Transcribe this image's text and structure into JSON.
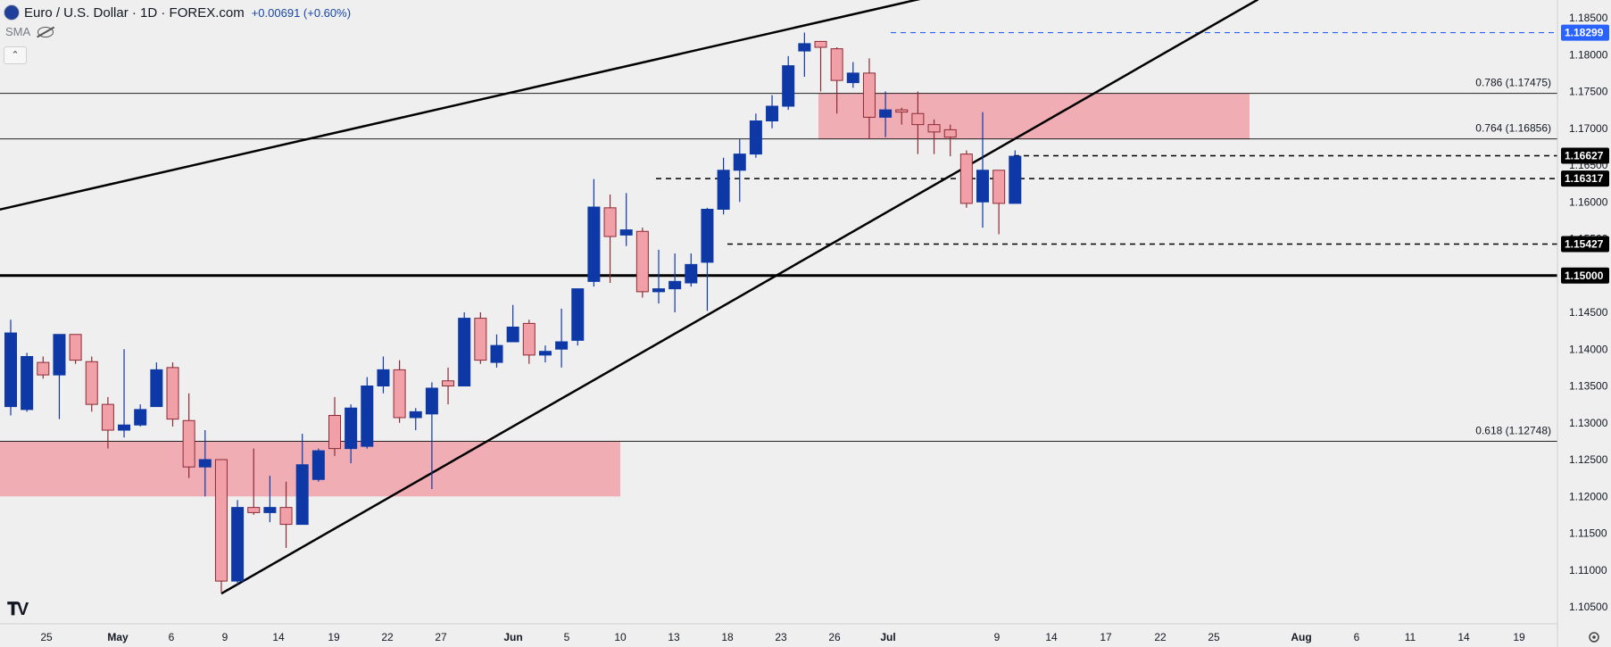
{
  "header": {
    "title": "Euro / U.S. Dollar · 1D · FOREX.com",
    "change": "+0.00691 (+0.60%)",
    "indicator": "SMA",
    "collapse_icon": "chevron-up-icon",
    "logo": "TV"
  },
  "colors": {
    "up": "#0e38a6",
    "down": "#f2a0a8",
    "down_border": "#8c2a35",
    "zone": "rgba(240,128,140,0.6)",
    "last_price_tag": "#2962ff",
    "black_tag": "#000000"
  },
  "chart_data": {
    "type": "candlestick",
    "title": "Euro / U.S. Dollar · 1D · FOREX.com",
    "ylim": [
      1.1025,
      1.1875
    ],
    "y_ticks": [
      "1.18500",
      "1.18000",
      "1.17500",
      "1.17000",
      "1.16500",
      "1.16000",
      "1.15500",
      "1.15000",
      "1.14500",
      "1.14000",
      "1.13500",
      "1.13000",
      "1.12500",
      "1.12000",
      "1.11500",
      "1.11000",
      "1.10500"
    ],
    "x_ticks": [
      "25",
      "May",
      "6",
      "9",
      "14",
      "19",
      "22",
      "27",
      "Jun",
      "5",
      "10",
      "13",
      "18",
      "23",
      "26",
      "Jul",
      "9",
      "14",
      "17",
      "22",
      "25",
      "Aug",
      "6",
      "11",
      "14",
      "19"
    ],
    "candles": [
      {
        "open": 1.1322,
        "high": 1.144,
        "low": 1.131,
        "close": 1.1422
      },
      {
        "open": 1.1318,
        "high": 1.1395,
        "low": 1.1315,
        "close": 1.139
      },
      {
        "open": 1.1382,
        "high": 1.139,
        "low": 1.136,
        "close": 1.1365
      },
      {
        "open": 1.1365,
        "high": 1.142,
        "low": 1.1305,
        "close": 1.142
      },
      {
        "open": 1.142,
        "high": 1.142,
        "low": 1.138,
        "close": 1.1385
      },
      {
        "open": 1.1383,
        "high": 1.139,
        "low": 1.1315,
        "close": 1.1325
      },
      {
        "open": 1.1325,
        "high": 1.1335,
        "low": 1.1265,
        "close": 1.129
      },
      {
        "open": 1.129,
        "high": 1.14,
        "low": 1.128,
        "close": 1.1297
      },
      {
        "open": 1.1297,
        "high": 1.1325,
        "low": 1.1295,
        "close": 1.1318
      },
      {
        "open": 1.1322,
        "high": 1.1382,
        "low": 1.1322,
        "close": 1.1372
      },
      {
        "open": 1.1375,
        "high": 1.1382,
        "low": 1.1295,
        "close": 1.1305
      },
      {
        "open": 1.1303,
        "high": 1.134,
        "low": 1.1225,
        "close": 1.124
      },
      {
        "open": 1.124,
        "high": 1.129,
        "low": 1.12,
        "close": 1.125
      },
      {
        "open": 1.125,
        "high": 1.125,
        "low": 1.107,
        "close": 1.1085
      },
      {
        "open": 1.1085,
        "high": 1.1195,
        "low": 1.108,
        "close": 1.1185
      },
      {
        "open": 1.1185,
        "high": 1.1265,
        "low": 1.1175,
        "close": 1.1178
      },
      {
        "open": 1.1178,
        "high": 1.1228,
        "low": 1.1165,
        "close": 1.1185
      },
      {
        "open": 1.1185,
        "high": 1.122,
        "low": 1.113,
        "close": 1.1162
      },
      {
        "open": 1.1162,
        "high": 1.1285,
        "low": 1.1162,
        "close": 1.1243
      },
      {
        "open": 1.1223,
        "high": 1.1265,
        "low": 1.122,
        "close": 1.1262
      },
      {
        "open": 1.131,
        "high": 1.1335,
        "low": 1.1255,
        "close": 1.1265
      },
      {
        "open": 1.1265,
        "high": 1.1325,
        "low": 1.1245,
        "close": 1.132
      },
      {
        "open": 1.1268,
        "high": 1.1362,
        "low": 1.1265,
        "close": 1.135
      },
      {
        "open": 1.135,
        "high": 1.139,
        "low": 1.134,
        "close": 1.1372
      },
      {
        "open": 1.1372,
        "high": 1.1385,
        "low": 1.13,
        "close": 1.1307
      },
      {
        "open": 1.1307,
        "high": 1.132,
        "low": 1.129,
        "close": 1.1315
      },
      {
        "open": 1.1312,
        "high": 1.1355,
        "low": 1.121,
        "close": 1.1347
      },
      {
        "open": 1.1357,
        "high": 1.1375,
        "low": 1.1325,
        "close": 1.135
      },
      {
        "open": 1.135,
        "high": 1.145,
        "low": 1.135,
        "close": 1.1442
      },
      {
        "open": 1.1442,
        "high": 1.145,
        "low": 1.138,
        "close": 1.1385
      },
      {
        "open": 1.1382,
        "high": 1.142,
        "low": 1.1375,
        "close": 1.1405
      },
      {
        "open": 1.141,
        "high": 1.146,
        "low": 1.141,
        "close": 1.143
      },
      {
        "open": 1.1435,
        "high": 1.144,
        "low": 1.138,
        "close": 1.1392
      },
      {
        "open": 1.1392,
        "high": 1.1405,
        "low": 1.1382,
        "close": 1.1397
      },
      {
        "open": 1.14,
        "high": 1.1455,
        "low": 1.1375,
        "close": 1.141
      },
      {
        "open": 1.1412,
        "high": 1.1475,
        "low": 1.1405,
        "close": 1.1482
      },
      {
        "open": 1.1492,
        "high": 1.1631,
        "low": 1.1485,
        "close": 1.1593
      },
      {
        "open": 1.1592,
        "high": 1.161,
        "low": 1.149,
        "close": 1.1553
      },
      {
        "open": 1.1555,
        "high": 1.1612,
        "low": 1.154,
        "close": 1.1562
      },
      {
        "open": 1.156,
        "high": 1.1565,
        "low": 1.147,
        "close": 1.1478
      },
      {
        "open": 1.1478,
        "high": 1.1535,
        "low": 1.1462,
        "close": 1.1482
      },
      {
        "open": 1.1482,
        "high": 1.153,
        "low": 1.145,
        "close": 1.1492
      },
      {
        "open": 1.149,
        "high": 1.153,
        "low": 1.1485,
        "close": 1.1515
      },
      {
        "open": 1.1518,
        "high": 1.1592,
        "low": 1.1452,
        "close": 1.159
      },
      {
        "open": 1.159,
        "high": 1.166,
        "low": 1.1583,
        "close": 1.1643
      },
      {
        "open": 1.1643,
        "high": 1.1685,
        "low": 1.16,
        "close": 1.1665
      },
      {
        "open": 1.1665,
        "high": 1.172,
        "low": 1.166,
        "close": 1.171
      },
      {
        "open": 1.171,
        "high": 1.1745,
        "low": 1.17,
        "close": 1.173
      },
      {
        "open": 1.173,
        "high": 1.1798,
        "low": 1.1725,
        "close": 1.1785
      },
      {
        "open": 1.1805,
        "high": 1.183,
        "low": 1.177,
        "close": 1.1815
      },
      {
        "open": 1.1818,
        "high": 1.1815,
        "low": 1.175,
        "close": 1.181
      },
      {
        "open": 1.1808,
        "high": 1.181,
        "low": 1.172,
        "close": 1.1765
      },
      {
        "open": 1.1762,
        "high": 1.179,
        "low": 1.1755,
        "close": 1.1775
      },
      {
        "open": 1.1775,
        "high": 1.1795,
        "low": 1.1685,
        "close": 1.1715
      },
      {
        "open": 1.1715,
        "high": 1.175,
        "low": 1.1688,
        "close": 1.1725
      },
      {
        "open": 1.1725,
        "high": 1.1728,
        "low": 1.1705,
        "close": 1.1722
      },
      {
        "open": 1.172,
        "high": 1.175,
        "low": 1.1665,
        "close": 1.1705
      },
      {
        "open": 1.1705,
        "high": 1.1712,
        "low": 1.1665,
        "close": 1.1695
      },
      {
        "open": 1.1698,
        "high": 1.1705,
        "low": 1.1662,
        "close": 1.1688
      },
      {
        "open": 1.1665,
        "high": 1.167,
        "low": 1.1592,
        "close": 1.1598
      },
      {
        "open": 1.16,
        "high": 1.1722,
        "low": 1.1565,
        "close": 1.1643
      },
      {
        "open": 1.1643,
        "high": 1.1643,
        "low": 1.1556,
        "close": 1.1598
      },
      {
        "open": 1.1598,
        "high": 1.167,
        "low": 1.1598,
        "close": 1.1662
      }
    ],
    "zones": [
      {
        "low": 1.1685,
        "high": 1.1748
      },
      {
        "low": 1.12,
        "high": 1.1275
      }
    ],
    "levels": [
      {
        "value": 1.18299,
        "label": "1.18299",
        "style": "dashed-blue",
        "tag": "blue"
      },
      {
        "value": 1.17475,
        "label": "0.786 (1.17475)",
        "style": "solid-thin"
      },
      {
        "value": 1.16856,
        "label": "0.764 (1.16856)",
        "style": "solid-thin"
      },
      {
        "value": 1.16627,
        "label": "1.16627",
        "style": "dashed",
        "tag": "black"
      },
      {
        "value": 1.16317,
        "label": "1.16317",
        "style": "dashed",
        "tag": "black"
      },
      {
        "value": 1.15427,
        "label": "1.15427",
        "style": "dashed",
        "tag": "black"
      },
      {
        "value": 1.15,
        "label": "1.15000",
        "style": "solid-thick",
        "tag": "black"
      },
      {
        "value": 1.12748,
        "label": "0.618 (1.12748)",
        "style": "solid-thin"
      }
    ],
    "trendlines": [
      {
        "from": [
          -1,
          1.1588
        ],
        "to": [
          58,
          1.1885
        ]
      },
      {
        "from": [
          13,
          1.1068
        ],
        "to": [
          77,
          1.1875
        ]
      }
    ]
  }
}
